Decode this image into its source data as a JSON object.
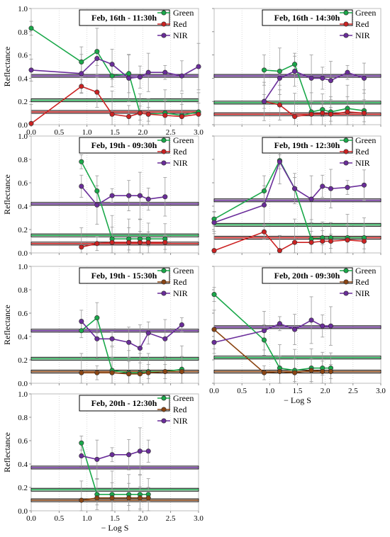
{
  "colors": {
    "green": "#1aa84a",
    "red": "#cc2222",
    "nir": "#6a2d9a",
    "brown": "#8b4513",
    "error_bar": "#9a9a9a"
  },
  "chart_data": [
    {
      "type": "line",
      "title": "Feb, 16th - 11:30h",
      "xlim": [
        0,
        3
      ],
      "ylim": [
        0,
        1
      ],
      "xticks": [
        "0.0",
        "0.5",
        "1.0",
        "1.5",
        "2.0",
        "2.5",
        "3.0"
      ],
      "yticks": [
        "0.0",
        "0.2",
        "0.4",
        "0.6",
        "0.8",
        "1.0"
      ],
      "ylabel": "Reflectance",
      "xlabel": "",
      "legend": "top-right",
      "x": [
        0.0,
        0.9,
        1.18,
        1.45,
        1.75,
        1.95,
        2.1,
        2.4,
        2.7,
        3.0
      ],
      "series": [
        {
          "name": "Green",
          "color": "green",
          "values": [
            0.83,
            0.54,
            0.63,
            0.42,
            0.44,
            0.1,
            0.09,
            0.1,
            0.08,
            0.11
          ],
          "hline": 0.21
        },
        {
          "name": "Red",
          "color": "red",
          "values": [
            0.01,
            0.33,
            0.28,
            0.09,
            0.07,
            0.1,
            0.09,
            0.08,
            0.07,
            0.09
          ],
          "hline": 0.11
        },
        {
          "name": "NIR",
          "color": "nir",
          "values": [
            0.47,
            0.44,
            0.57,
            0.52,
            0.4,
            0.41,
            0.45,
            0.45,
            0.42,
            0.5
          ],
          "hline": 0.42
        }
      ]
    },
    {
      "type": "line",
      "title": "Feb, 16th - 14:30h",
      "xlim": [
        0,
        3
      ],
      "ylim": [
        0,
        1
      ],
      "xticks": [],
      "yticks": [],
      "ylabel": "",
      "xlabel": "",
      "legend": "top-right",
      "x": [
        0.0,
        0.9,
        1.18,
        1.45,
        1.75,
        1.95,
        2.1,
        2.4,
        2.7
      ],
      "series": [
        {
          "name": "Green",
          "color": "green",
          "values": [
            null,
            0.47,
            0.46,
            0.52,
            0.11,
            0.13,
            0.11,
            0.14,
            0.12
          ],
          "hline": 0.19
        },
        {
          "name": "Red",
          "color": "red",
          "values": [
            null,
            0.2,
            0.17,
            0.07,
            0.09,
            0.1,
            0.09,
            0.11,
            0.1
          ],
          "hline": 0.09
        },
        {
          "name": "NIR",
          "color": "nir",
          "values": [
            null,
            0.2,
            0.4,
            0.46,
            0.4,
            0.4,
            0.38,
            0.45,
            0.4
          ],
          "hline": 0.42
        }
      ]
    },
    {
      "type": "line",
      "title": "Feb, 19th - 09:30h",
      "xlim": [
        0,
        3
      ],
      "ylim": [
        0,
        1
      ],
      "xticks": [],
      "yticks": [
        "0.0",
        "0.2",
        "0.4",
        "0.6",
        "0.8",
        "1.0"
      ],
      "ylabel": "Reflectance",
      "xlabel": "",
      "legend": "top-right",
      "x": [
        0.9,
        1.18,
        1.45,
        1.75,
        1.95,
        2.1,
        2.4
      ],
      "series": [
        {
          "name": "Green",
          "color": "green",
          "values": [
            0.78,
            0.53,
            0.12,
            0.12,
            0.12,
            0.12,
            0.12
          ],
          "hline": 0.15
        },
        {
          "name": "Red",
          "color": "red",
          "values": [
            0.05,
            0.08,
            0.09,
            0.09,
            0.09,
            0.09,
            0.09
          ],
          "hline": 0.08
        },
        {
          "name": "NIR",
          "color": "nir",
          "values": [
            0.57,
            0.41,
            0.49,
            0.49,
            0.49,
            0.46,
            0.48
          ],
          "hline": 0.42
        }
      ]
    },
    {
      "type": "line",
      "title": "Feb, 19th - 12:30h",
      "xlim": [
        0,
        3
      ],
      "ylim": [
        0,
        1
      ],
      "xticks": [],
      "yticks": [],
      "ylabel": "",
      "xlabel": "",
      "legend": "top-right",
      "x": [
        0.0,
        0.9,
        1.18,
        1.45,
        1.75,
        1.95,
        2.1,
        2.4,
        2.7
      ],
      "series": [
        {
          "name": "Green",
          "color": "green",
          "values": [
            0.29,
            0.53,
            0.79,
            0.55,
            0.12,
            0.13,
            0.13,
            0.13,
            0.13
          ],
          "hline": 0.24
        },
        {
          "name": "Red",
          "color": "red",
          "values": [
            0.02,
            0.18,
            0.02,
            0.09,
            0.09,
            0.1,
            0.1,
            0.11,
            0.1
          ],
          "hline": 0.13
        },
        {
          "name": "NIR",
          "color": "nir",
          "values": [
            0.26,
            0.41,
            0.78,
            0.55,
            0.46,
            0.57,
            0.55,
            0.56,
            0.58
          ],
          "hline": 0.45
        }
      ]
    },
    {
      "type": "line",
      "title": "Feb, 19th - 15:30h",
      "xlim": [
        0,
        3
      ],
      "ylim": [
        0,
        1
      ],
      "xticks": [],
      "yticks": [
        "0.0",
        "0.2",
        "0.4",
        "0.6",
        "0.8",
        "1.0"
      ],
      "ylabel": "Reflectance",
      "xlabel": "",
      "legend": "top-right",
      "x": [
        0.9,
        1.18,
        1.45,
        1.75,
        1.95,
        2.1,
        2.4,
        2.7
      ],
      "series": [
        {
          "name": "Green",
          "color": "green",
          "values": [
            0.45,
            0.56,
            0.11,
            0.09,
            0.09,
            0.1,
            0.1,
            0.12
          ],
          "hline": 0.21
        },
        {
          "name": "Red",
          "color": "brown",
          "values": [
            0.09,
            0.09,
            0.09,
            0.08,
            0.08,
            0.09,
            0.1,
            0.1
          ],
          "hline": 0.1
        },
        {
          "name": "NIR",
          "color": "nir",
          "values": [
            0.53,
            0.38,
            0.38,
            0.35,
            0.3,
            0.43,
            0.38,
            0.5
          ],
          "hline": 0.45
        }
      ]
    },
    {
      "type": "line",
      "title": "Feb, 20th - 09:30h",
      "xlim": [
        0,
        3
      ],
      "ylim": [
        0,
        1
      ],
      "xticks": [
        "0.0",
        "0.5",
        "1.0",
        "1.5",
        "2.0",
        "2.5",
        "3.0"
      ],
      "yticks": [],
      "ylabel": "",
      "xlabel": "− Log S",
      "legend": "top-right",
      "x": [
        0.0,
        0.9,
        1.18,
        1.45,
        1.75,
        1.95,
        2.1
      ],
      "series": [
        {
          "name": "Green",
          "color": "green",
          "values": [
            0.76,
            0.37,
            0.13,
            0.11,
            0.13,
            0.13,
            0.13
          ],
          "hline": 0.22
        },
        {
          "name": "Red",
          "color": "brown",
          "values": [
            0.46,
            0.09,
            0.1,
            0.09,
            0.11,
            0.1,
            0.1
          ],
          "hline": 0.1
        },
        {
          "name": "NIR",
          "color": "nir",
          "values": [
            0.35,
            0.45,
            0.51,
            0.46,
            0.54,
            0.49,
            0.49
          ],
          "hline": 0.48
        }
      ]
    },
    {
      "type": "line",
      "title": "Feb, 20th - 12:30h",
      "xlim": [
        0,
        3
      ],
      "ylim": [
        0,
        1
      ],
      "xticks": [
        "0.0",
        "0.5",
        "1.0",
        "1.5",
        "2.0",
        "2.5",
        "3.0"
      ],
      "yticks": [
        "0.0",
        "0.2",
        "0.4",
        "0.6",
        "0.8",
        "1.0"
      ],
      "ylabel": "Reflectance",
      "xlabel": "− Log S",
      "legend": "top-right",
      "x": [
        0.9,
        1.18,
        1.45,
        1.75,
        1.95,
        2.1
      ],
      "series": [
        {
          "name": "Green",
          "color": "green",
          "values": [
            0.58,
            0.14,
            0.14,
            0.14,
            0.14,
            0.14
          ],
          "hline": 0.18
        },
        {
          "name": "Red",
          "color": "brown",
          "values": [
            0.09,
            0.11,
            0.11,
            0.11,
            0.11,
            0.11
          ],
          "hline": 0.09
        },
        {
          "name": "NIR",
          "color": "nir",
          "values": [
            0.47,
            0.44,
            0.48,
            0.48,
            0.51,
            0.51
          ],
          "hline": 0.37
        }
      ]
    }
  ]
}
